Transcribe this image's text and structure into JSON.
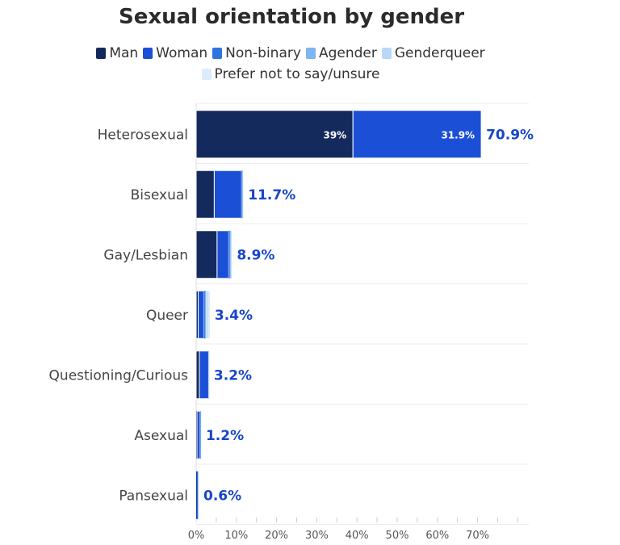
{
  "chart_data": {
    "type": "bar",
    "orientation": "horizontal",
    "stacked": true,
    "title": "Sexual orientation by gender",
    "categories": [
      "Heterosexual",
      "Bisexual",
      "Gay/Lesbian",
      "Queer",
      "Questioning/Curious",
      "Asexual",
      "Pansexual"
    ],
    "series": [
      {
        "name": "Man",
        "color": "#142a5c",
        "values": [
          39,
          4.5,
          5.2,
          0.5,
          0.8,
          0.2,
          0.1
        ]
      },
      {
        "name": "Woman",
        "color": "#1b4fd6",
        "values": [
          31.9,
          6.8,
          2.9,
          1.4,
          2.3,
          0.8,
          0.2
        ]
      },
      {
        "name": "Non-binary",
        "color": "#2f74e0",
        "values": [
          0,
          0.2,
          0.3,
          0.3,
          0.05,
          0.1,
          0.1
        ]
      },
      {
        "name": "Agender",
        "color": "#7fb5f0",
        "values": [
          0,
          0.1,
          0.2,
          0.4,
          0.02,
          0.05,
          0.1
        ]
      },
      {
        "name": "Genderqueer",
        "color": "#b9d8f8",
        "values": [
          0,
          0.05,
          0.2,
          0.6,
          0.02,
          0.03,
          0.05
        ]
      },
      {
        "name": "Prefer not to say/unsure",
        "color": "#dcecfc",
        "values": [
          0,
          0.05,
          0.1,
          0.2,
          0.01,
          0.02,
          0.05
        ]
      }
    ],
    "totals": [
      "70.9%",
      "11.7%",
      "8.9%",
      "3.4%",
      "3.2%",
      "1.2%",
      "0.6%"
    ],
    "data_labels": [
      {
        "category": "Heterosexual",
        "series": "Man",
        "text": "39%"
      },
      {
        "category": "Heterosexual",
        "series": "Woman",
        "text": "31.9%"
      }
    ],
    "xlim": [
      0,
      80
    ],
    "x_ticks": [
      "0%",
      "10%",
      "20%",
      "30%",
      "40%",
      "50%",
      "60%",
      "70%"
    ],
    "grid": true,
    "legend_position": "top-center"
  }
}
